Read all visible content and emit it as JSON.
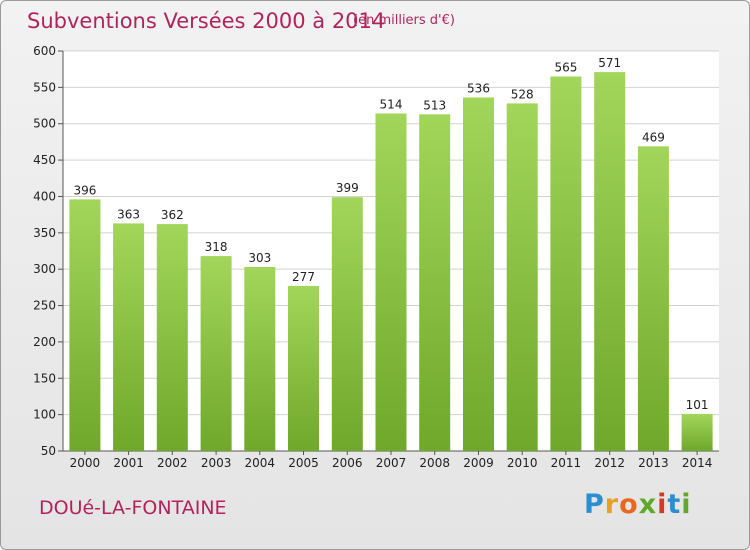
{
  "header": {
    "title": "Subventions Versées 2000 à 2014",
    "subtitle": "(en milliers d'€)"
  },
  "footer": {
    "place": "DOUé-LA-FONTAINE",
    "logo_letters": [
      "P",
      "r",
      "o",
      "x",
      "i",
      "t",
      "i"
    ]
  },
  "chart_data": {
    "type": "bar",
    "title": "Subventions Versées 2000 à 2014",
    "subtitle": "(en milliers d'€)",
    "categories": [
      "2000",
      "2001",
      "2002",
      "2003",
      "2004",
      "2005",
      "2006",
      "2007",
      "2008",
      "2009",
      "2010",
      "2011",
      "2012",
      "2013",
      "2014"
    ],
    "values": [
      396,
      363,
      362,
      318,
      303,
      277,
      399,
      514,
      513,
      536,
      528,
      565,
      571,
      469,
      101
    ],
    "ylim": [
      50,
      600
    ],
    "yticks": [
      50,
      100,
      150,
      200,
      250,
      300,
      350,
      400,
      450,
      500,
      550,
      600
    ],
    "grid": true,
    "bar_color": "#8cc63f"
  }
}
